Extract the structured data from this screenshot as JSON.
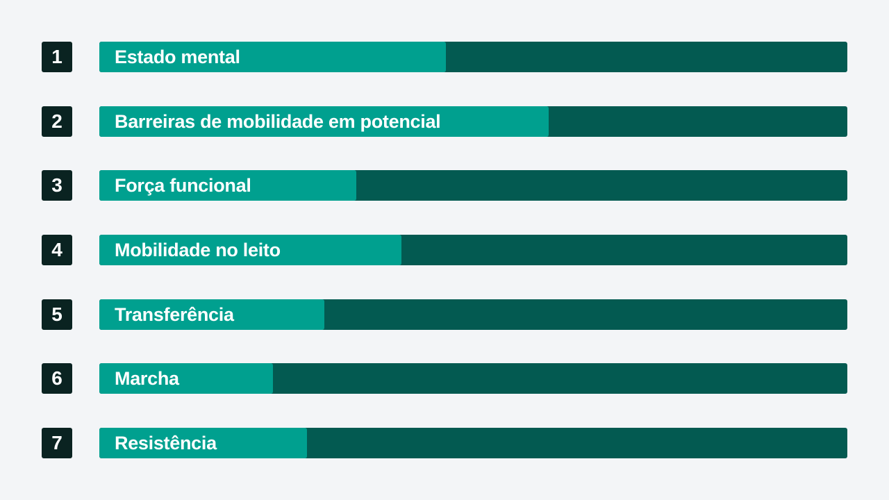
{
  "items": [
    {
      "number": "1",
      "label": "Estado mental",
      "progress": 0.463
    },
    {
      "number": "2",
      "label": "Barreiras de mobilidade em potencial",
      "progress": 0.601
    },
    {
      "number": "3",
      "label": "Força funcional",
      "progress": 0.344
    },
    {
      "number": "4",
      "label": "Mobilidade no leito",
      "progress": 0.404
    },
    {
      "number": "5",
      "label": "Transferência",
      "progress": 0.301
    },
    {
      "number": "6",
      "label": "Marcha",
      "progress": 0.232
    },
    {
      "number": "7",
      "label": "Resistência",
      "progress": 0.278
    }
  ],
  "colors": {
    "background": "#f3f5f7",
    "number_box": "#0a2321",
    "track": "#035a51",
    "fill": "#00a08f",
    "text": "#ffffff"
  }
}
